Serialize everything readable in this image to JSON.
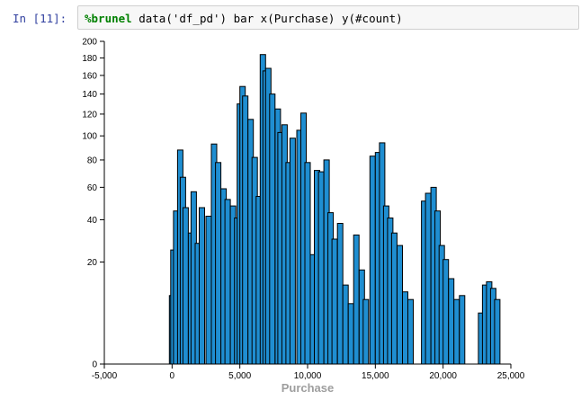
{
  "cell": {
    "prompt": "In [11]:",
    "code_magic": "%brunel",
    "code_rest": " data('df_pd') bar x(Purchase) y(#count)"
  },
  "chart_data": {
    "type": "bar",
    "xlabel": "Purchase",
    "ylabel": "",
    "x_ticks": [
      "-5,000",
      "0",
      "5,000",
      "10,000",
      "15,000",
      "20,000",
      "25,000"
    ],
    "y_ticks": [
      "0",
      "20",
      "40",
      "60",
      "80",
      "100",
      "120",
      "140",
      "160",
      "180",
      "200"
    ],
    "xlim": [
      -5000,
      25000
    ],
    "y_scale": "sqrt",
    "ylim": [
      0,
      200
    ],
    "bar_color": "#1f8ed1",
    "edge_color": "#000000",
    "x": [
      0,
      100,
      300,
      600,
      800,
      1000,
      1400,
      1600,
      1900,
      2200,
      2700,
      3100,
      3400,
      3800,
      4100,
      4500,
      4800,
      5000,
      5200,
      5400,
      5800,
      6100,
      6400,
      6700,
      6900,
      7100,
      7400,
      7800,
      8000,
      8300,
      8600,
      8900,
      9400,
      9700,
      10000,
      10400,
      10700,
      11000,
      11400,
      11700,
      12000,
      12400,
      12800,
      13200,
      13600,
      14000,
      14300,
      14800,
      15200,
      15500,
      15800,
      16100,
      16400,
      16800,
      17200,
      17600,
      18600,
      18900,
      19300,
      19600,
      19900,
      20200,
      20600,
      21000,
      21400,
      22800,
      23100,
      23400,
      23700,
      24000
    ],
    "values": [
      9,
      25,
      45,
      88,
      67,
      47,
      33,
      57,
      28,
      47,
      42,
      93,
      78,
      59,
      52,
      48,
      41,
      130,
      148,
      138,
      115,
      82,
      54,
      184,
      165,
      168,
      140,
      125,
      103,
      110,
      78,
      98,
      105,
      121,
      78,
      23,
      72,
      71,
      80,
      44,
      30,
      38,
      12,
      7,
      32,
      17,
      8,
      83,
      86,
      94,
      48,
      41,
      33,
      27,
      10,
      8,
      51,
      56,
      60,
      45,
      27,
      21,
      14,
      8,
      9,
      5,
      12,
      13,
      11,
      8
    ]
  }
}
